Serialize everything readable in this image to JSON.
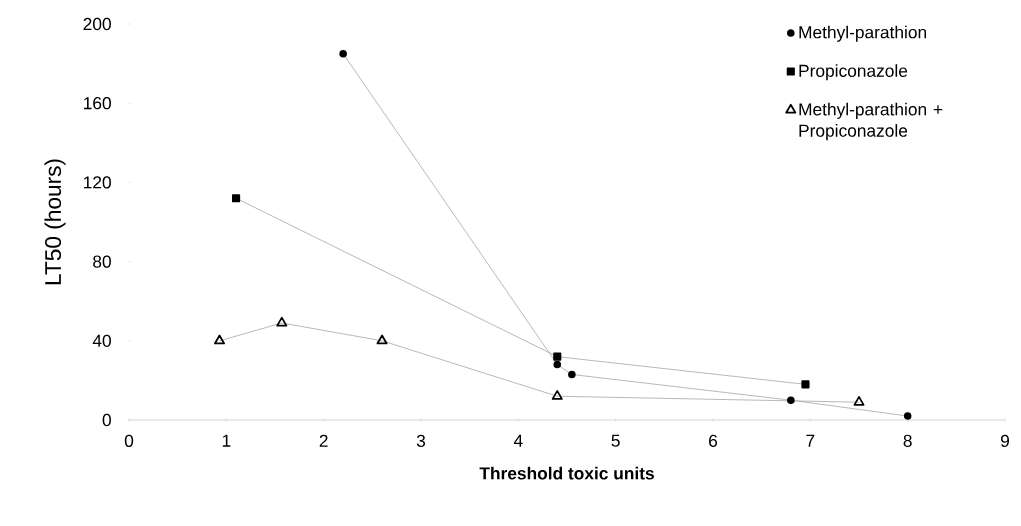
{
  "chart_data": {
    "type": "line",
    "xlabel": "Threshold toxic units",
    "ylabel": "LT50 (hours)",
    "xlim": [
      0,
      9
    ],
    "xticks": [
      0,
      1,
      2,
      3,
      4,
      5,
      6,
      7,
      8,
      9
    ],
    "ylim": [
      0,
      200
    ],
    "yticks": [
      0,
      40,
      80,
      120,
      160,
      200
    ],
    "legend": "top right",
    "line_style": "solid",
    "series": [
      {
        "name": "Methyl-parathion",
        "color": "#000000",
        "marker": "circle",
        "x": [
          2.2,
          4.4,
          4.55,
          6.8,
          8.0
        ],
        "values": [
          185,
          28,
          23,
          10,
          2
        ]
      },
      {
        "name": "Propiconazole",
        "color": "#000000",
        "marker": "square",
        "x": [
          1.1,
          4.4,
          6.95
        ],
        "values": [
          112,
          32,
          18
        ]
      },
      {
        "name": "Methyl-parathion + Propiconazole",
        "color": "#000000",
        "marker": "triangle",
        "x": [
          0.93,
          1.57,
          2.6,
          4.4,
          7.5
        ],
        "values": [
          40,
          49,
          40,
          12,
          9
        ]
      }
    ]
  }
}
